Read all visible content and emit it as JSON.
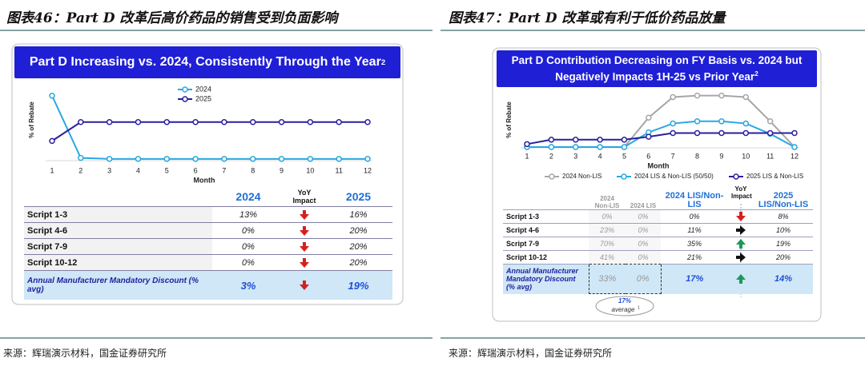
{
  "left_panel": {
    "heading": "图表46：Part D 改革后高价药品的销售受到负面影响",
    "banner": "Part D Increasing vs. 2024, Consistently Through the Year",
    "banner_note": "2",
    "table": {
      "header": [
        "2024",
        "YoY Impact",
        "2025"
      ],
      "rows": [
        [
          "Script 1-3",
          "13%",
          "16%"
        ],
        [
          "Script 4-6",
          "0%",
          "20%"
        ],
        [
          "Script 7-9",
          "0%",
          "20%"
        ],
        [
          "Script 10-12",
          "0%",
          "20%"
        ],
        [
          "Annual Manufacturer Mandatory Discount (% avg)",
          "3%",
          "19%"
        ]
      ]
    },
    "source": "来源：辉瑞演示材料，国金证券研究所"
  },
  "right_panel": {
    "heading": "图表47：Part D 改革或有利于低价药品放量",
    "banner": "Part D Contribution Decreasing on FY Basis vs. 2024 but Negatively Impacts 1H-25 vs Prior Year",
    "banner_note": "2",
    "table": {
      "header": [
        "2024 Non-LIS",
        "2024 LIS",
        "2024 LIS/Non-LIS",
        "YoY Impact",
        "2025 LIS/Non-LIS"
      ],
      "rows": [
        [
          "Script 1-3",
          "0%",
          "0%",
          "0%",
          "8%"
        ],
        [
          "Script 4-6",
          "23%",
          "0%",
          "11%",
          "10%"
        ],
        [
          "Script 7-9",
          "70%",
          "0%",
          "35%",
          "19%"
        ],
        [
          "Script 10-12",
          "41%",
          "0%",
          "21%",
          "20%"
        ],
        [
          "Annual Manufacturer Mandatory Discount (% avg)",
          "33%",
          "0%",
          "17%",
          "14%"
        ]
      ]
    },
    "average_value": "17%",
    "average_label": "average",
    "average_note": "1",
    "source": "来源：辉瑞演示材料，国金证券研究所"
  },
  "chart_data": [
    {
      "type": "line",
      "y_label": "% of Rebate",
      "x_label": "Month",
      "x": [
        1,
        2,
        3,
        4,
        5,
        6,
        7,
        8,
        9,
        10,
        11,
        12
      ],
      "xlim": [
        1,
        12
      ],
      "xticks": [
        1,
        2,
        3,
        4,
        5,
        6,
        7,
        8,
        9,
        10,
        11,
        12
      ],
      "ylim": [
        0,
        36
      ],
      "legend": "top",
      "series": [
        {
          "name": "2024",
          "color": "#29a8e0",
          "values": [
            34,
            1,
            0.5,
            0.5,
            0.5,
            0.5,
            0.5,
            0.5,
            0.5,
            0.5,
            0.5,
            0.5
          ]
        },
        {
          "name": "2025",
          "color": "#2a1f9e",
          "values": [
            10,
            20,
            20,
            20,
            20,
            20,
            20,
            20,
            20,
            20,
            20,
            20
          ]
        }
      ]
    },
    {
      "type": "line",
      "y_label": "% of Rebate",
      "x_label": "Month",
      "x": [
        1,
        2,
        3,
        4,
        5,
        6,
        7,
        8,
        9,
        10,
        11,
        12
      ],
      "xlim": [
        1,
        12
      ],
      "xticks": [
        1,
        2,
        3,
        4,
        5,
        6,
        7,
        8,
        9,
        10,
        11,
        12
      ],
      "ylim": [
        0,
        75
      ],
      "legend": "bottom",
      "series": [
        {
          "name": "2024 Non-LIS",
          "color": "#a6a6a6",
          "values": [
            0,
            0,
            0,
            0,
            0,
            40,
            68,
            70,
            70,
            68,
            35,
            0
          ]
        },
        {
          "name": "2024 LIS & Non-LIS (50/50)",
          "color": "#29a8e0",
          "values": [
            0,
            0,
            0,
            0,
            0,
            20,
            32,
            35,
            35,
            32,
            18,
            0
          ]
        },
        {
          "name": "2025 LIS & Non-LIS",
          "color": "#2a1f9e",
          "values": [
            4,
            10,
            10,
            10,
            10,
            14,
            19,
            19,
            19,
            19,
            19,
            19
          ]
        }
      ]
    }
  ]
}
